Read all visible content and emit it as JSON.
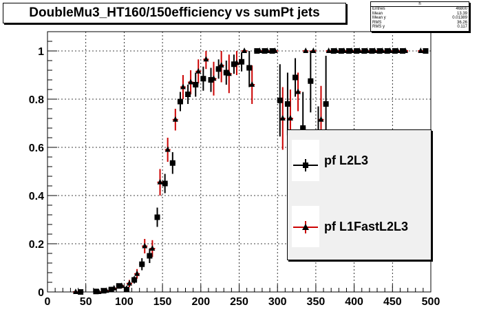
{
  "title": "DoubleMu3_HT160/150efficiency vs sumPt jets",
  "stats": {
    "name": "h",
    "rows": [
      {
        "label": "Entries",
        "value": "46800"
      },
      {
        "label": "Mean",
        "value": "13.39"
      },
      {
        "label": "Mean y",
        "value": "0.01389"
      },
      {
        "label": "RMS",
        "value": "36.26"
      },
      {
        "label": "RMS y",
        "value": "0.117"
      }
    ]
  },
  "colors": {
    "series1": "#000000",
    "series2": "#cc0000",
    "legend_bg": "#f0f0f0"
  },
  "chart_data": {
    "type": "scatter",
    "title": "DoubleMu3_HT160/150efficiency vs sumPt jets",
    "xlim": [
      0,
      500
    ],
    "ylim": [
      0,
      1.08
    ],
    "xticks": [
      0,
      50,
      100,
      150,
      200,
      250,
      300,
      350,
      400,
      450,
      500
    ],
    "yticks": [
      0,
      0.2,
      0.4,
      0.6,
      0.8,
      1
    ],
    "grid": true,
    "legend_position": "right",
    "series": [
      {
        "name": "pf L2L3",
        "marker": "square",
        "color": "#000000",
        "points": [
          [
            45,
            0.0,
            0.005
          ],
          [
            65,
            0.002,
            0.005
          ],
          [
            75,
            0.005,
            0.006
          ],
          [
            85,
            0.01,
            0.008
          ],
          [
            95,
            0.025,
            0.01
          ],
          [
            105,
            0.01,
            0.015
          ],
          [
            115,
            0.05,
            0.015
          ],
          [
            125,
            0.115,
            0.025
          ],
          [
            135,
            0.15,
            0.03
          ],
          [
            145,
            0.31,
            0.04
          ],
          [
            155,
            0.45,
            0.04
          ],
          [
            165,
            0.535,
            0.045
          ],
          [
            175,
            0.79,
            0.04
          ],
          [
            185,
            0.82,
            0.04
          ],
          [
            195,
            0.86,
            0.05
          ],
          [
            205,
            0.885,
            0.05
          ],
          [
            215,
            0.88,
            0.05
          ],
          [
            225,
            0.925,
            0.04
          ],
          [
            235,
            0.91,
            0.05
          ],
          [
            245,
            0.945,
            0.04
          ],
          [
            255,
            0.955,
            0.04
          ],
          [
            265,
            0.93,
            0.08
          ],
          [
            275,
            1.0,
            0
          ],
          [
            285,
            1.0,
            0
          ],
          [
            295,
            1.0,
            0
          ],
          [
            305,
            0.795,
            0.15
          ],
          [
            315,
            0.78,
            0.13
          ],
          [
            325,
            0.89,
            0.08
          ],
          [
            335,
            0.68,
            0.15
          ],
          [
            345,
            0.875,
            0.13
          ],
          [
            355,
            0.62,
            0.15
          ],
          [
            365,
            0.78,
            0.2
          ],
          [
            375,
            1.0,
            0
          ],
          [
            385,
            1.0,
            0
          ],
          [
            395,
            1.0,
            0
          ],
          [
            405,
            1.0,
            0
          ],
          [
            415,
            1.0,
            0
          ],
          [
            425,
            1.0,
            0
          ],
          [
            435,
            1.0,
            0
          ],
          [
            445,
            1.0,
            0
          ],
          [
            455,
            1.0,
            0
          ],
          [
            465,
            1.0,
            0
          ],
          [
            495,
            1.0,
            0
          ]
        ]
      },
      {
        "name": "pf L1FastL2L3",
        "marker": "triangle",
        "color": "#cc0000",
        "points": [
          [
            35,
            0.0,
            0.005
          ],
          [
            65,
            0.0,
            0.005
          ],
          [
            75,
            0.005,
            0.006
          ],
          [
            85,
            0.015,
            0.008
          ],
          [
            95,
            0.025,
            0.01
          ],
          [
            105,
            0.035,
            0.015
          ],
          [
            115,
            0.075,
            0.02
          ],
          [
            125,
            0.19,
            0.03
          ],
          [
            135,
            0.18,
            0.035
          ],
          [
            145,
            0.455,
            0.055
          ],
          [
            155,
            0.59,
            0.05
          ],
          [
            165,
            0.715,
            0.045
          ],
          [
            175,
            0.85,
            0.05
          ],
          [
            185,
            0.87,
            0.05
          ],
          [
            195,
            0.915,
            0.05
          ],
          [
            205,
            0.965,
            0.04
          ],
          [
            215,
            0.885,
            0.07
          ],
          [
            225,
            0.94,
            0.07
          ],
          [
            235,
            0.905,
            0.08
          ],
          [
            245,
            0.95,
            0.05
          ],
          [
            255,
            1.0,
            0
          ],
          [
            265,
            0.86,
            0.08
          ],
          [
            275,
            1.0,
            0
          ],
          [
            285,
            1.0,
            0
          ],
          [
            295,
            1.0,
            0
          ],
          [
            305,
            0.72,
            0.13
          ],
          [
            315,
            0.72,
            0.12
          ],
          [
            325,
            0.83,
            0.08
          ],
          [
            335,
            1.0,
            0
          ],
          [
            345,
            1.0,
            0
          ],
          [
            355,
            0.715,
            0.14
          ],
          [
            365,
            1.0,
            0
          ],
          [
            375,
            1.0,
            0
          ],
          [
            385,
            1.0,
            0
          ],
          [
            395,
            1.0,
            0
          ],
          [
            405,
            1.0,
            0
          ],
          [
            415,
            1.0,
            0
          ],
          [
            425,
            1.0,
            0
          ],
          [
            435,
            1.0,
            0
          ],
          [
            445,
            1.0,
            0
          ],
          [
            455,
            1.0,
            0
          ],
          [
            465,
            1.0,
            0
          ],
          [
            485,
            1.0,
            0
          ]
        ]
      }
    ]
  }
}
